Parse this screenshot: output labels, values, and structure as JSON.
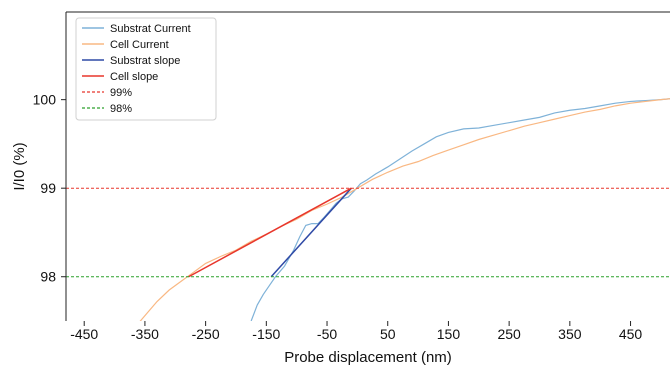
{
  "chart_data": {
    "type": "line",
    "xlabel": "Probe displacement (nm)",
    "ylabel": "I/I0 (%)",
    "xlim": [
      -480,
      515
    ],
    "ylim": [
      97.5,
      100.99
    ],
    "xticks": [
      -450,
      -350,
      -250,
      -150,
      -50,
      50,
      150,
      250,
      350,
      450
    ],
    "xtick_labels": [
      "-450",
      "-350",
      "-250",
      "-150",
      "-50",
      "50",
      "150",
      "250",
      "350",
      "450"
    ],
    "yticks": [
      98,
      99,
      100
    ],
    "ytick_labels": [
      "98",
      "99",
      "100"
    ],
    "grid": false,
    "legend_position": "top-left",
    "series": [
      {
        "name": "Substrat Current",
        "color": "#7fb2d8",
        "style": "solid",
        "x": [
          -175,
          -165,
          -155,
          -145,
          -135,
          -120,
          -105,
          -95,
          -85,
          -75,
          -65,
          -55,
          -45,
          -35,
          -25,
          -15,
          -5,
          5,
          15,
          30,
          50,
          70,
          90,
          110,
          130,
          150,
          175,
          200,
          225,
          250,
          275,
          300,
          325,
          350,
          375,
          400,
          425,
          450,
          475,
          500,
          515
        ],
        "y": [
          97.5,
          97.68,
          97.8,
          97.9,
          98.0,
          98.12,
          98.3,
          98.45,
          98.58,
          98.6,
          98.6,
          98.67,
          98.75,
          98.83,
          98.88,
          98.9,
          98.97,
          99.05,
          99.09,
          99.16,
          99.24,
          99.33,
          99.42,
          99.5,
          99.58,
          99.63,
          99.67,
          99.68,
          99.71,
          99.74,
          99.77,
          99.8,
          99.85,
          99.88,
          99.9,
          99.93,
          99.96,
          99.98,
          99.99,
          100.0,
          100.01
        ]
      },
      {
        "name": "Cell Current",
        "color": "#f9b883",
        "style": "solid",
        "x": [
          -360,
          -345,
          -330,
          -310,
          -290,
          -270,
          -250,
          -225,
          -200,
          -175,
          -150,
          -125,
          -100,
          -75,
          -50,
          -25,
          0,
          25,
          50,
          75,
          100,
          125,
          150,
          175,
          200,
          225,
          250,
          275,
          300,
          325,
          350,
          375,
          400,
          425,
          450,
          475,
          500,
          515
        ],
        "y": [
          97.48,
          97.6,
          97.72,
          97.85,
          97.95,
          98.05,
          98.15,
          98.23,
          98.3,
          98.4,
          98.48,
          98.57,
          98.65,
          98.75,
          98.82,
          98.9,
          99.0,
          99.1,
          99.18,
          99.25,
          99.3,
          99.37,
          99.43,
          99.49,
          99.55,
          99.6,
          99.65,
          99.7,
          99.74,
          99.78,
          99.82,
          99.86,
          99.89,
          99.93,
          99.96,
          99.98,
          100.0,
          100.01
        ]
      },
      {
        "name": "Substrat slope",
        "color": "#2f4aa6",
        "style": "solid",
        "x": [
          -142,
          -10
        ],
        "y": [
          98.0,
          99.0
        ]
      },
      {
        "name": "Cell slope",
        "color": "#e8362c",
        "style": "solid",
        "x": [
          -278,
          -10
        ],
        "y": [
          98.0,
          99.0
        ]
      },
      {
        "name": "99%",
        "color": "#e8362c",
        "style": "dashed",
        "x": [
          -480,
          515
        ],
        "y": [
          99.0,
          99.0
        ]
      },
      {
        "name": "98%",
        "color": "#2ca02c",
        "style": "dashed",
        "x": [
          -480,
          515
        ],
        "y": [
          98.0,
          98.0
        ]
      }
    ]
  }
}
